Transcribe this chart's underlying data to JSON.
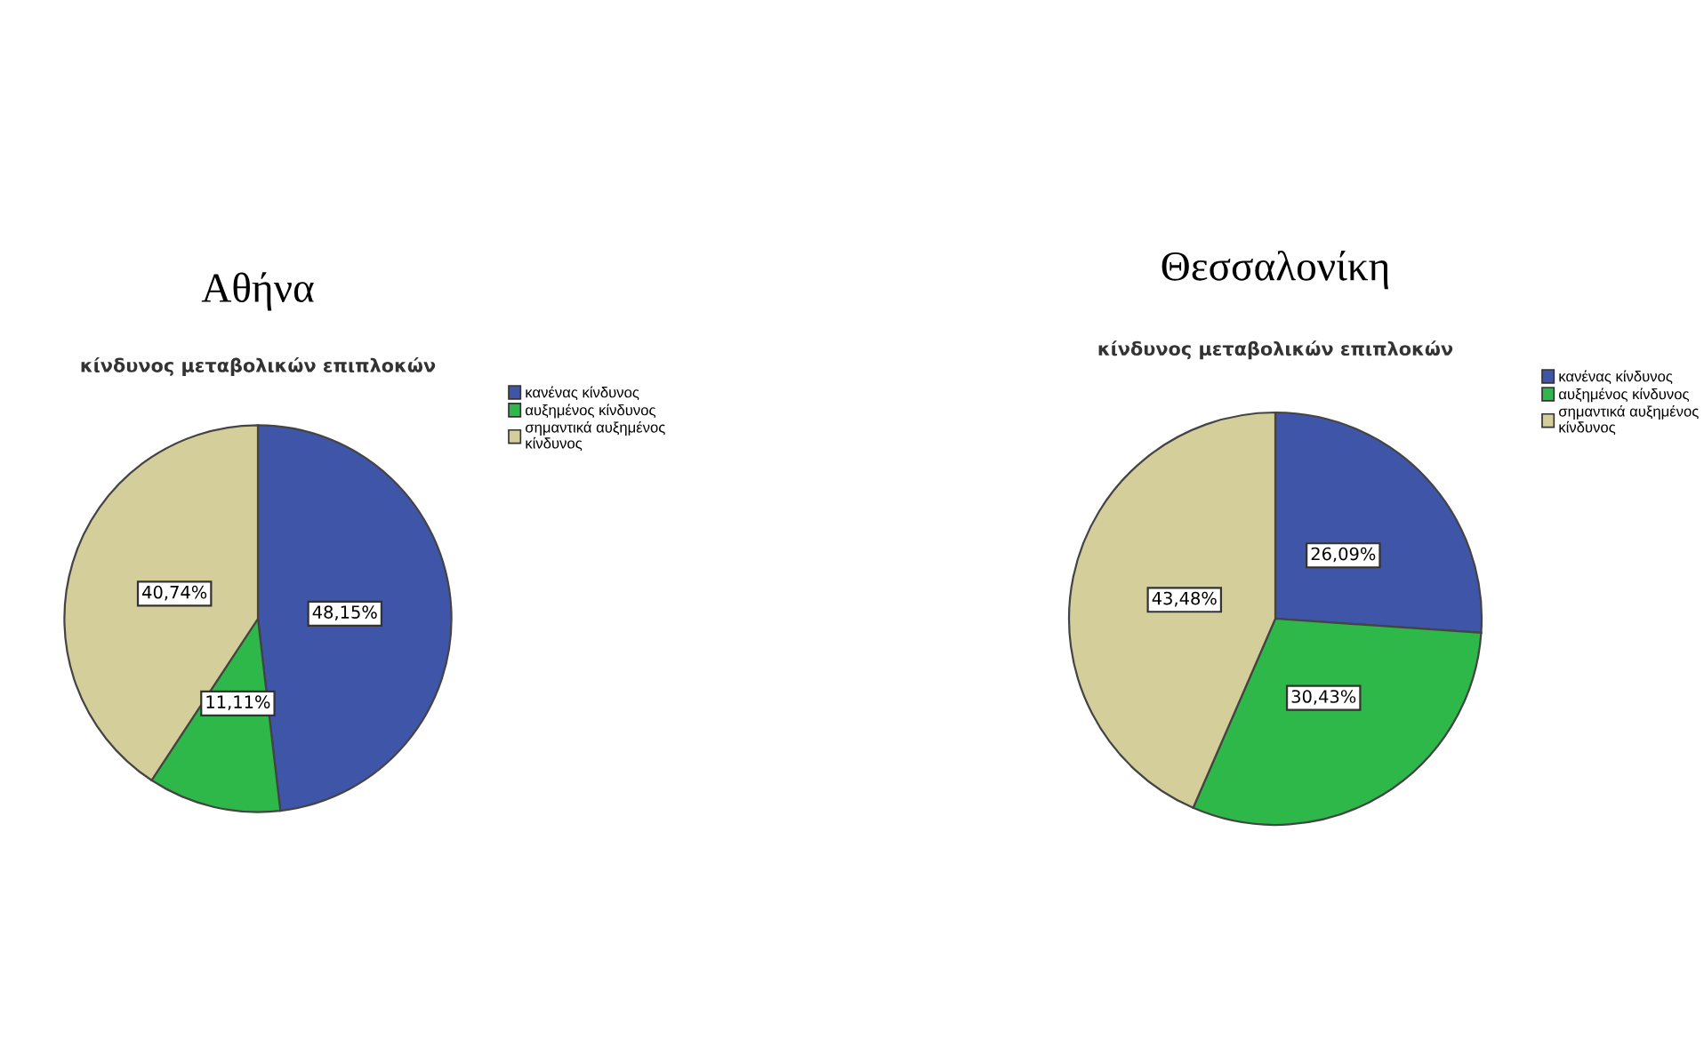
{
  "chart_data": [
    {
      "type": "pie",
      "title": "Αθήνα",
      "subtitle": "κίνδυνος μεταβολικών επιπλοκών",
      "categories": [
        "κανένας κίνδυνος",
        "αυξημένος κίνδυνος",
        "σημαντικά αυξημένος κίνδυνος"
      ],
      "values": [
        48.15,
        11.11,
        40.74
      ],
      "value_labels": [
        "48,15%",
        "11,11%",
        "40,74%"
      ],
      "colors": [
        "#3f56a8",
        "#2eb84a",
        "#d4cf9a"
      ],
      "legend": "top right"
    },
    {
      "type": "pie",
      "title": "Θεσσαλονίκη",
      "subtitle": "κίνδυνος μεταβολικών επιπλοκών",
      "categories": [
        "κανένας κίνδυνος",
        "αυξημένος κίνδυνος",
        "σημαντικά αυξημένος κίνδυνος"
      ],
      "values": [
        26.09,
        30.43,
        43.48
      ],
      "value_labels": [
        "26,09%",
        "30,43%",
        "43,48%"
      ],
      "colors": [
        "#3f56a8",
        "#2eb84a",
        "#d4cf9a"
      ],
      "legend": "top right"
    }
  ]
}
